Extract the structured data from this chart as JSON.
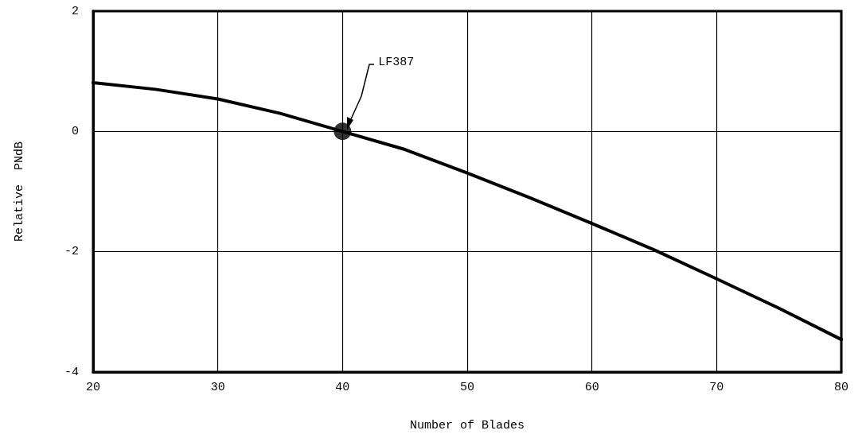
{
  "chart_data": {
    "type": "line",
    "xlabel": "Number of Blades",
    "ylabel": "Relative  PNdB",
    "xlim": [
      20,
      80
    ],
    "xticks": [
      20,
      30,
      40,
      50,
      60,
      70,
      80
    ],
    "ylim": [
      -4,
      2
    ],
    "yticks": [
      -4,
      -2,
      0,
      2
    ],
    "grid": true,
    "series": [
      {
        "color": "#000000",
        "marker": "none",
        "x": [
          20,
          25,
          30,
          35,
          40,
          45,
          50,
          55,
          60,
          65,
          70,
          75,
          80
        ],
        "values": [
          0.81,
          0.7,
          0.54,
          0.3,
          0,
          -0.3,
          -0.69,
          -1.1,
          -1.53,
          -1.97,
          -2.45,
          -2.94,
          -3.46
        ]
      },
      {
        "type": "scatter",
        "color": "#000000",
        "marker": "circle",
        "x": [
          40
        ],
        "values": [
          0
        ]
      }
    ],
    "annotations": [
      "LF387"
    ]
  }
}
